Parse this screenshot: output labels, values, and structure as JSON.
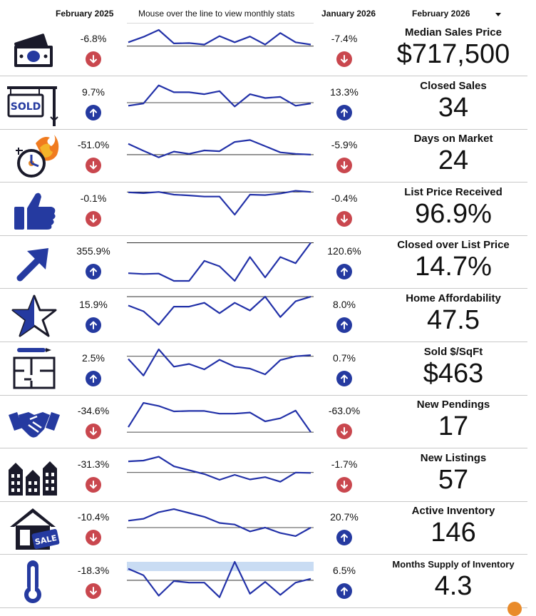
{
  "header": {
    "col1": "February 2025",
    "note": "Mouse over the line to view monthly stats",
    "col2": "January 2026",
    "selected_month": "February 2026"
  },
  "colors": {
    "line": "#2231a8",
    "up": "#253aa0",
    "down": "#c9474e",
    "band": "#c9dcf3"
  },
  "rows": [
    {
      "label": "Median Sales Price",
      "value": "$717,500",
      "yoy": "-6.8%",
      "yoy_dir": "down",
      "mom": "-7.4%",
      "mom_dir": "down",
      "icon": "money-icon",
      "series": [
        0.68,
        0.82,
        1.0,
        0.65,
        0.66,
        0.62,
        0.84,
        0.68,
        0.83,
        0.62,
        0.92,
        0.68,
        0.62
      ],
      "baseline": 0.58
    },
    {
      "label": "Closed Sales",
      "value": "34",
      "yoy": "9.7%",
      "yoy_dir": "up",
      "mom": "13.3%",
      "mom_dir": "up",
      "icon": "sold-sign-icon",
      "series": [
        0.42,
        0.48,
        0.95,
        0.77,
        0.77,
        0.72,
        0.8,
        0.4,
        0.72,
        0.62,
        0.65,
        0.42,
        0.48
      ],
      "baseline": 0.5
    },
    {
      "label": "Days on Market",
      "value": "24",
      "yoy": "-51.0%",
      "yoy_dir": "down",
      "mom": "-5.9%",
      "mom_dir": "down",
      "icon": "clock-fire-icon",
      "series": [
        0.8,
        0.62,
        0.45,
        0.6,
        0.54,
        0.63,
        0.61,
        0.85,
        0.9,
        0.74,
        0.58,
        0.54,
        0.52
      ],
      "baseline": 0.52
    },
    {
      "label": "List Price Received",
      "value": "96.9%",
      "yoy": "-0.1%",
      "yoy_dir": "down",
      "mom": "-0.4%",
      "mom_dir": "down",
      "icon": "thumbs-up-icon",
      "series": [
        0.93,
        0.91,
        0.94,
        0.87,
        0.85,
        0.82,
        0.82,
        0.35,
        0.87,
        0.86,
        0.9,
        0.97,
        0.94
      ],
      "baseline": 0.94
    },
    {
      "label": "Closed over List Price",
      "value": "14.7%",
      "yoy": "355.9%",
      "yoy_dir": "up",
      "mom": "120.6%",
      "mom_dir": "up",
      "icon": "arrow-up-right-icon",
      "series": [
        0.2,
        0.18,
        0.19,
        0.0,
        0.0,
        0.52,
        0.38,
        0.0,
        0.62,
        0.09,
        0.62,
        0.46,
        0.99
      ],
      "baseline": 0.99
    },
    {
      "label": "Home Affordability",
      "value": "47.5",
      "yoy": "15.9%",
      "yoy_dir": "up",
      "mom": "8.0%",
      "mom_dir": "up",
      "icon": "star-icon",
      "series": [
        0.75,
        0.6,
        0.25,
        0.72,
        0.72,
        0.82,
        0.55,
        0.82,
        0.62,
        0.98,
        0.45,
        0.86,
        0.98
      ],
      "baseline": 0.98
    },
    {
      "label": "Sold $/SqFt",
      "value": "$463",
      "yoy": "2.5%",
      "yoy_dir": "up",
      "mom": "0.7%",
      "mom_dir": "up",
      "icon": "floor-plan-icon",
      "series": [
        0.75,
        0.32,
        1.0,
        0.55,
        0.62,
        0.48,
        0.73,
        0.55,
        0.5,
        0.35,
        0.72,
        0.82,
        0.85
      ],
      "baseline": 0.82
    },
    {
      "label": "New Pendings",
      "value": "17",
      "yoy": "-34.6%",
      "yoy_dir": "down",
      "mom": "-63.0%",
      "mom_dir": "down",
      "icon": "handshake-icon",
      "series": [
        0.35,
        0.98,
        0.9,
        0.76,
        0.77,
        0.77,
        0.7,
        0.7,
        0.73,
        0.5,
        0.58,
        0.78,
        0.22
      ],
      "baseline": 0.22
    },
    {
      "label": "New Listings",
      "value": "57",
      "yoy": "-31.3%",
      "yoy_dir": "down",
      "mom": "-1.7%",
      "mom_dir": "down",
      "icon": "houses-icon",
      "series": [
        0.85,
        0.87,
        0.97,
        0.72,
        0.62,
        0.52,
        0.37,
        0.5,
        0.38,
        0.44,
        0.32,
        0.56,
        0.55
      ],
      "baseline": 0.56
    },
    {
      "label": "Active Inventory",
      "value": "146",
      "yoy": "-10.4%",
      "yoy_dir": "down",
      "mom": "20.7%",
      "mom_dir": "up",
      "icon": "house-sale-icon",
      "series": [
        0.68,
        0.73,
        0.9,
        0.98,
        0.88,
        0.78,
        0.62,
        0.58,
        0.4,
        0.5,
        0.36,
        0.28,
        0.5
      ],
      "baseline": 0.5
    },
    {
      "label": "Months Supply of Inventory",
      "value": "4.3",
      "yoy": "-18.3%",
      "yoy_dir": "down",
      "mom": "6.5%",
      "mom_dir": "up",
      "icon": "thermometer-icon",
      "series": [
        0.82,
        0.65,
        0.12,
        0.5,
        0.46,
        0.46,
        0.08,
        1.0,
        0.17,
        0.48,
        0.14,
        0.46,
        0.56
      ],
      "baseline": 0.52,
      "band": [
        0.76,
        1.0
      ]
    }
  ]
}
